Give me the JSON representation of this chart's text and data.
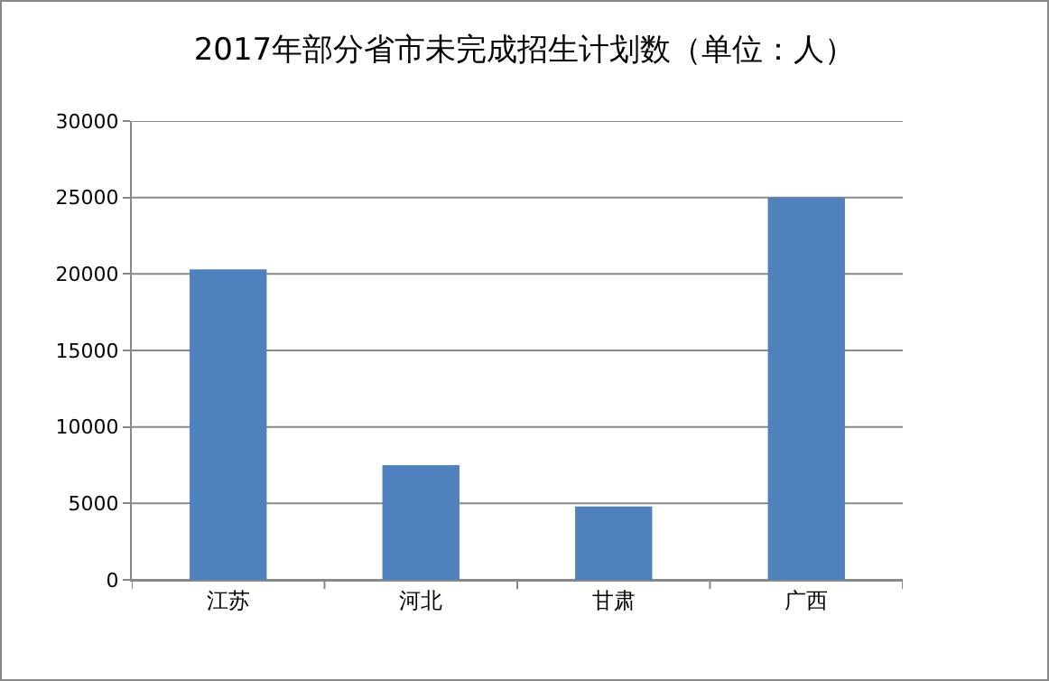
{
  "chart_data": {
    "type": "bar",
    "title": "2017年部分省市未完成招生计划数（单位：人）",
    "categories": [
      "江苏",
      "河北",
      "甘肃",
      "广西"
    ],
    "values": [
      20300,
      7500,
      4800,
      25000
    ],
    "color": "#4f81bd",
    "ylim": [
      0,
      30000
    ],
    "yticks": [
      0,
      5000,
      10000,
      15000,
      20000,
      25000,
      30000
    ],
    "grid": "y"
  }
}
